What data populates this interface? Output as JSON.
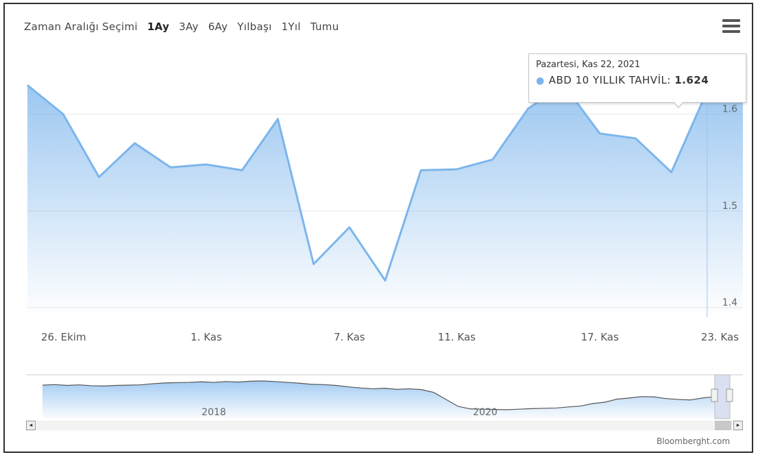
{
  "range_selector": {
    "label": "Zaman Aralığı Seçimi",
    "buttons": [
      "1Ay",
      "3Ay",
      "6Ay",
      "Yılbaşı",
      "1Yıl",
      "Tumu"
    ],
    "selected": "1Ay"
  },
  "tooltip": {
    "date": "Pazartesi, Kas 22, 2021",
    "series_label": "ABD 10 YILLIK TAHVİL:",
    "value": "1.624"
  },
  "credits": "Bloomberght.com",
  "colors": {
    "line": "#7cb5ec",
    "area_top": "#7cb5ec",
    "navigator_line": "#555555"
  },
  "chart_data": {
    "type": "area",
    "series": [
      {
        "name": "ABD 10 YILLIK TAHVİL",
        "values": [
          1.63,
          1.6,
          1.535,
          1.57,
          1.545,
          1.548,
          1.542,
          1.595,
          1.445,
          1.483,
          1.428,
          1.542,
          1.543,
          1.553,
          1.606,
          1.63,
          1.58,
          1.575,
          1.54,
          1.624,
          1.66
        ]
      }
    ],
    "x_tick_labels": [
      "26. Ekim",
      "1. Kas",
      "7. Kas",
      "11. Kas",
      "17. Kas",
      "23. Kas"
    ],
    "x_tick_positions": [
      0.5,
      5,
      9,
      12,
      16,
      20
    ],
    "y_tick_labels": [
      "1.4",
      "1.5",
      "1.6"
    ],
    "y_ticks": [
      1.4,
      1.5,
      1.6
    ],
    "ylim": [
      1.39,
      1.66
    ],
    "highlight_index": 19,
    "grid": true,
    "navigator": {
      "year_labels": [
        "2018",
        "2020"
      ],
      "values": [
        2.42,
        2.46,
        2.4,
        2.44,
        2.38,
        2.36,
        2.4,
        2.42,
        2.44,
        2.52,
        2.58,
        2.6,
        2.62,
        2.66,
        2.62,
        2.68,
        2.64,
        2.7,
        2.72,
        2.68,
        2.62,
        2.56,
        2.48,
        2.46,
        2.4,
        2.3,
        2.22,
        2.16,
        2.2,
        2.12,
        2.16,
        2.1,
        1.9,
        1.4,
        0.9,
        0.72,
        0.7,
        0.68,
        0.66,
        0.7,
        0.74,
        0.76,
        0.78,
        0.86,
        0.92,
        1.1,
        1.2,
        1.42,
        1.5,
        1.6,
        1.58,
        1.46,
        1.4,
        1.36,
        1.5,
        1.6
      ]
    }
  }
}
